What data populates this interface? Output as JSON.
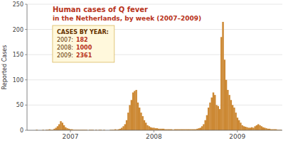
{
  "chart_data": {
    "type": "bar",
    "title": "Human cases of Q fever",
    "subtitle": "in the Netherlands, by week (2007–2009)",
    "y_label": "Reported Cases",
    "color": "#cc8833",
    "grid": true,
    "ylim": [
      0,
      250
    ],
    "yticks": [
      0,
      50,
      100,
      150,
      200,
      250
    ],
    "annotations": [
      {
        "text": "CASES BY YEAR:"
      },
      {
        "text": "2007:",
        "value": 182
      },
      {
        "text": "2008:",
        "value": 1000
      },
      {
        "text": "2009:",
        "value": 2361
      }
    ],
    "categories": [
      null,
      null,
      null,
      null,
      null,
      null,
      null,
      null,
      null,
      null,
      null,
      null,
      null,
      null,
      null,
      null,
      null,
      null,
      null,
      null,
      null,
      null,
      null,
      null,
      null,
      null,
      "2007",
      null,
      null,
      null,
      null,
      null,
      null,
      null,
      null,
      null,
      null,
      null,
      null,
      null,
      null,
      null,
      null,
      null,
      null,
      null,
      null,
      null,
      null,
      null,
      null,
      null,
      null,
      null,
      null,
      null,
      null,
      null,
      null,
      null,
      null,
      null,
      null,
      null,
      null,
      null,
      null,
      null,
      null,
      null,
      null,
      null,
      null,
      null,
      null,
      null,
      null,
      null,
      "2008",
      null,
      null,
      null,
      null,
      null,
      null,
      null,
      null,
      null,
      null,
      null,
      null,
      null,
      null,
      null,
      null,
      null,
      null,
      null,
      null,
      null,
      null,
      null,
      null,
      null,
      null,
      null,
      null,
      null,
      null,
      null,
      null,
      null,
      null,
      null,
      null,
      null,
      null,
      null,
      null,
      null,
      null,
      null,
      null,
      null,
      null,
      null,
      null,
      null,
      null,
      null,
      "2009",
      null,
      null,
      null,
      null,
      null,
      null,
      null,
      null,
      null,
      null,
      null,
      null,
      null,
      null,
      null,
      null,
      null,
      null,
      null,
      null,
      null,
      null,
      null,
      null,
      null,
      null,
      null
    ],
    "values": [
      0,
      0,
      0,
      0,
      0,
      1,
      0,
      0,
      0,
      1,
      0,
      1,
      1,
      2,
      1,
      1,
      3,
      5,
      8,
      12,
      18,
      15,
      10,
      6,
      4,
      3,
      2,
      2,
      1,
      1,
      1,
      1,
      1,
      1,
      1,
      1,
      1,
      0,
      1,
      1,
      1,
      0,
      1,
      0,
      1,
      1,
      0,
      1,
      0,
      0,
      0,
      1,
      1,
      1,
      2,
      1,
      2,
      3,
      5,
      8,
      12,
      20,
      35,
      50,
      60,
      75,
      78,
      80,
      55,
      45,
      35,
      28,
      20,
      15,
      10,
      8,
      6,
      5,
      5,
      4,
      4,
      3,
      3,
      3,
      3,
      2,
      2,
      2,
      2,
      2,
      1,
      2,
      2,
      2,
      2,
      2,
      2,
      2,
      2,
      2,
      2,
      2,
      2,
      2,
      2,
      3,
      4,
      5,
      8,
      12,
      20,
      30,
      45,
      55,
      65,
      75,
      70,
      50,
      48,
      42,
      185,
      215,
      140,
      100,
      80,
      70,
      60,
      50,
      45,
      35,
      25,
      20,
      15,
      10,
      8,
      7,
      6,
      5,
      5,
      6,
      5,
      8,
      10,
      12,
      10,
      8,
      6,
      5,
      4,
      3,
      3,
      2,
      2,
      2,
      2,
      1,
      1,
      1
    ]
  }
}
